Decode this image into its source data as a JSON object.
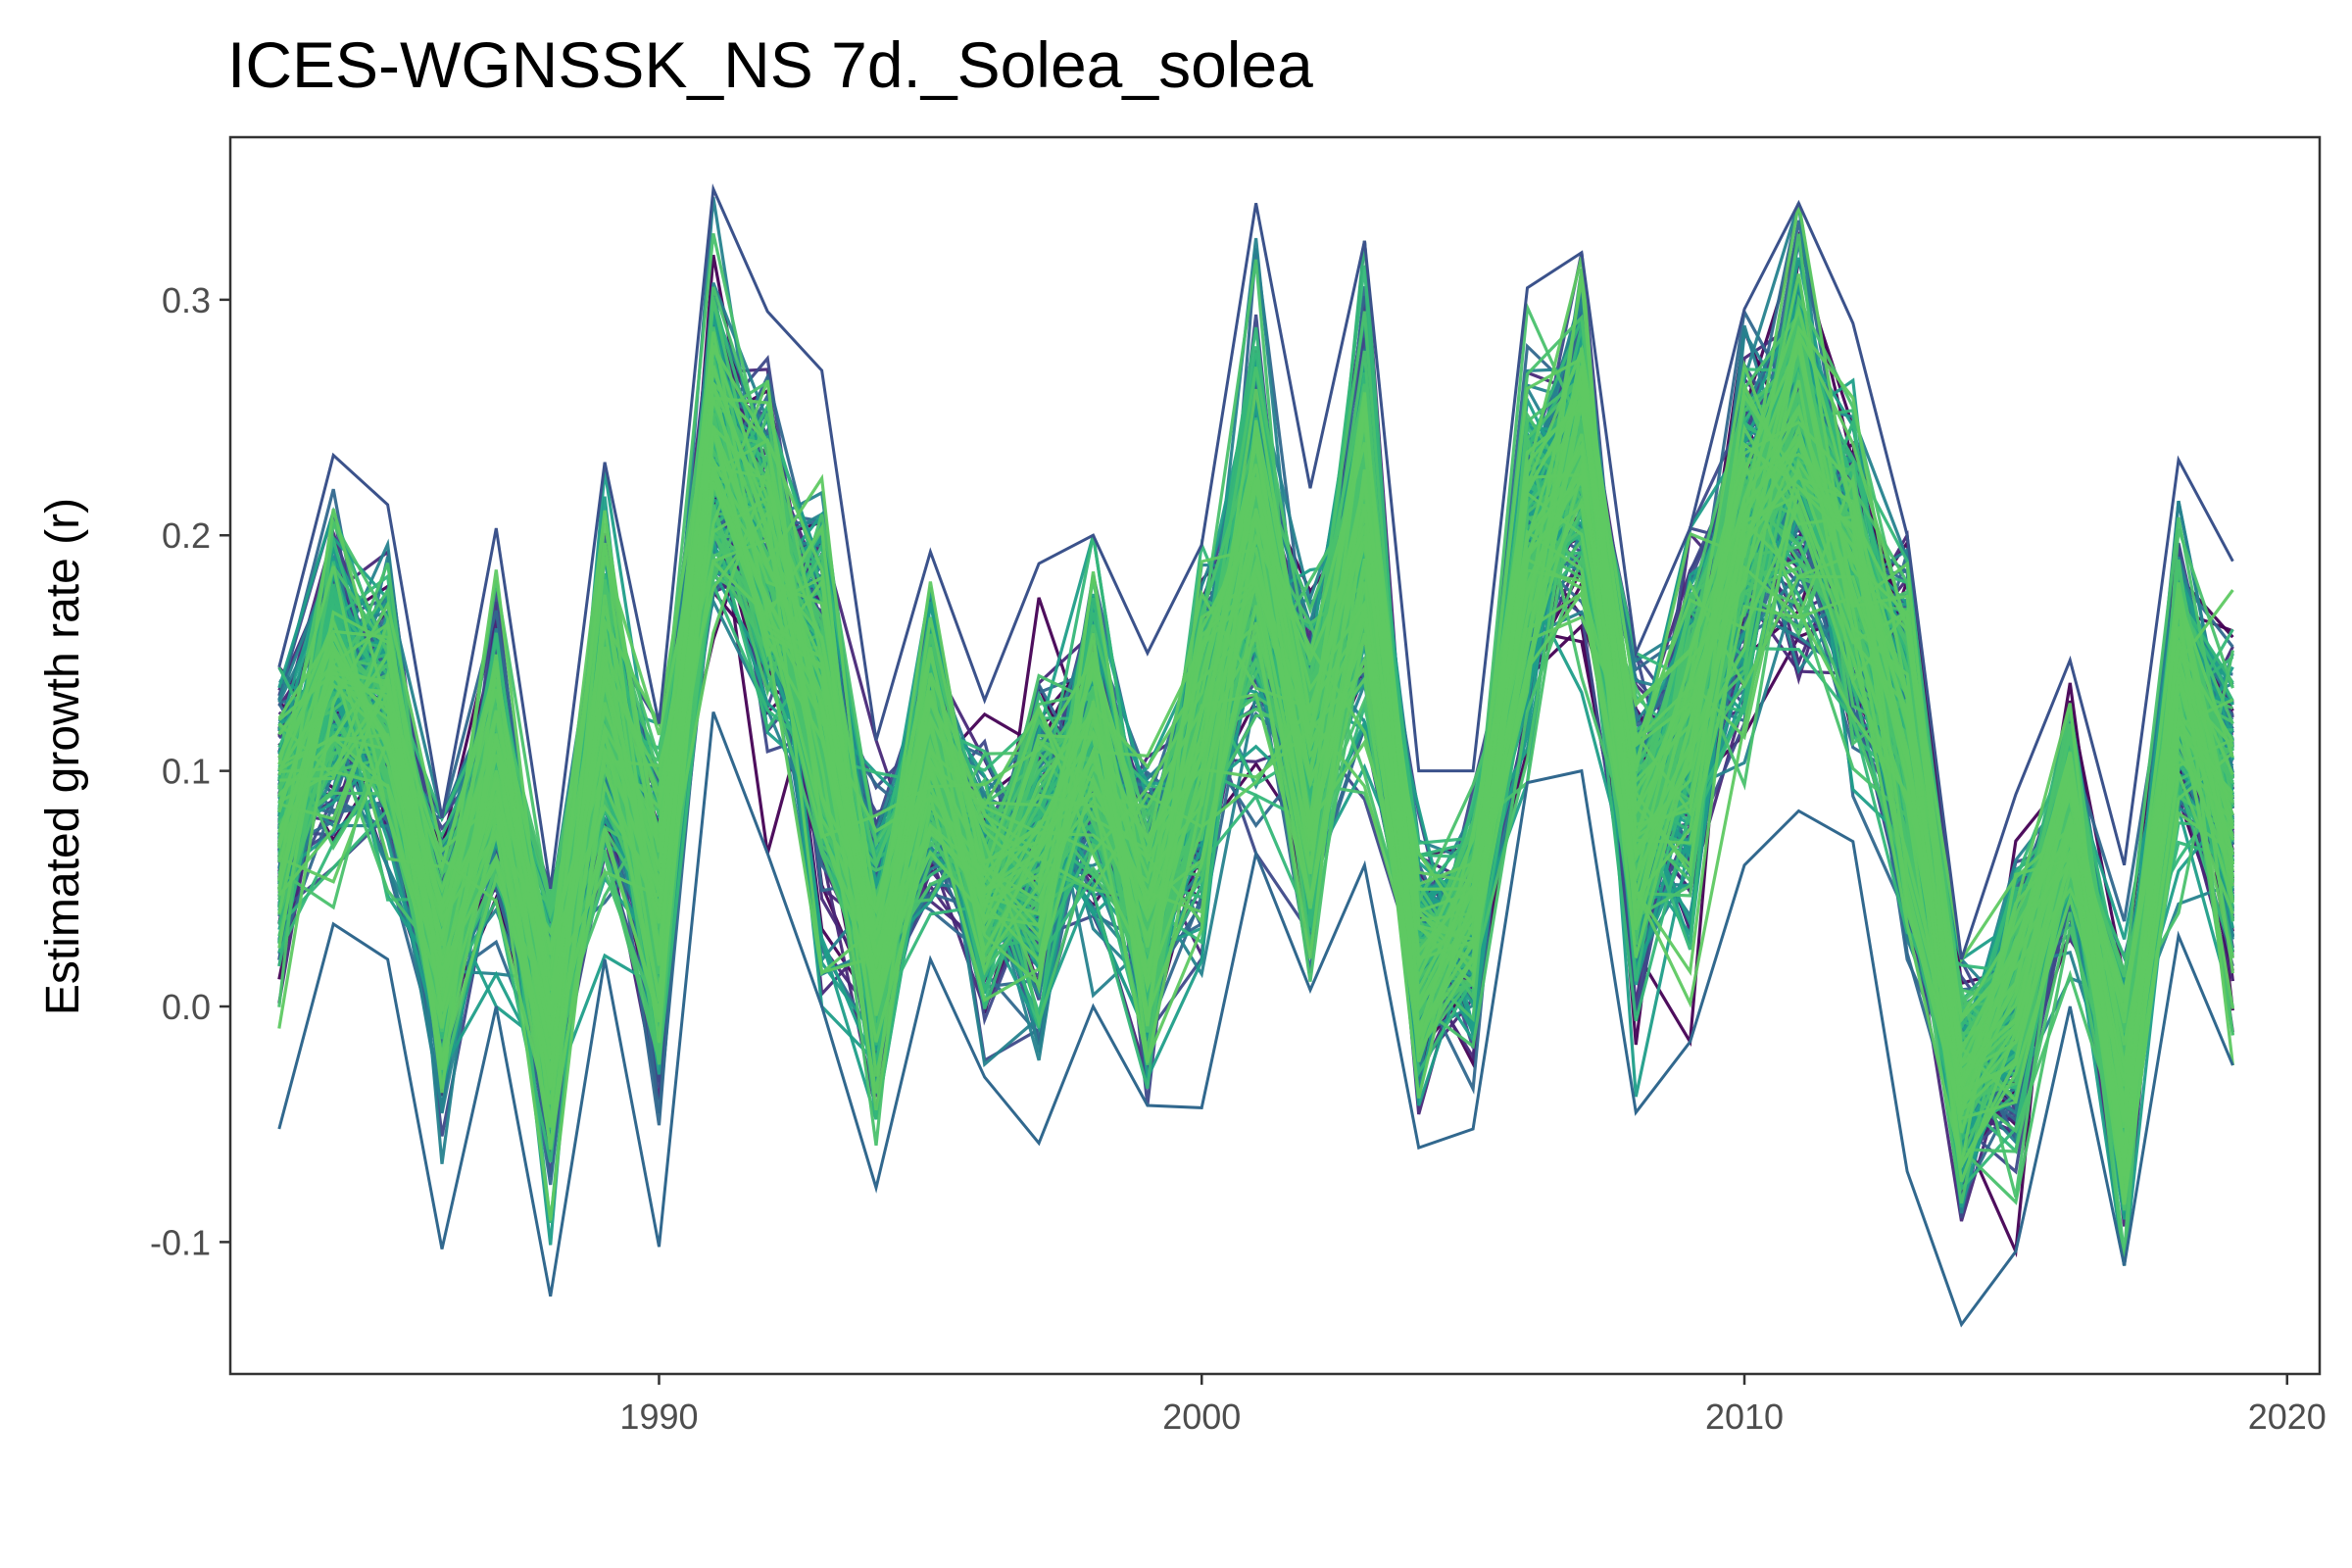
{
  "chart_data": {
    "type": "line",
    "title": "ICES-WGNSSK_NS 7d._Solea_solea",
    "xlabel": "",
    "ylabel": "Estimated growth rate (r)",
    "xlim": [
      1982.1,
      2020.6
    ],
    "ylim": [
      -0.156,
      0.369
    ],
    "x_ticks": [
      1990,
      2000,
      2010,
      2020
    ],
    "x_tick_labels": [
      "1990",
      "2000",
      "2010",
      "2020"
    ],
    "y_ticks": [
      -0.1,
      0.0,
      0.1,
      0.2,
      0.3
    ],
    "y_tick_labels": [
      "-0.1",
      "0.0",
      "0.1",
      "0.2",
      "0.3"
    ],
    "grid": false,
    "legend": "none",
    "ensemble_size": 300,
    "palette": [
      "#440154",
      "#482878",
      "#3e4989",
      "#31688e",
      "#26828e",
      "#1f9e89",
      "#35b779",
      "#4ac16d",
      "#5ec962"
    ],
    "years": [
      1983,
      1984,
      1985,
      1986,
      1987,
      1988,
      1989,
      1990,
      1991,
      1992,
      1993,
      1994,
      1995,
      1996,
      1997,
      1998,
      1999,
      2000,
      2001,
      2002,
      2003,
      2004,
      2005,
      2006,
      2007,
      2008,
      2009,
      2010,
      2011,
      2012,
      2013,
      2014,
      2015,
      2016,
      2017,
      2018,
      2019
    ],
    "mean": [
      0.075,
      0.14,
      0.12,
      0.02,
      0.1,
      -0.01,
      0.13,
      0.04,
      0.24,
      0.19,
      0.13,
      0.02,
      0.11,
      0.05,
      0.06,
      0.11,
      0.04,
      0.11,
      0.2,
      0.1,
      0.21,
      0.02,
      0.04,
      0.19,
      0.24,
      0.07,
      0.12,
      0.2,
      0.24,
      0.18,
      0.11,
      -0.04,
      0.0,
      0.08,
      -0.04,
      0.14,
      0.08
    ],
    "upper": [
      0.144,
      0.234,
      0.213,
      0.08,
      0.203,
      0.05,
      0.231,
      0.12,
      0.347,
      0.295,
      0.27,
      0.113,
      0.193,
      0.13,
      0.188,
      0.2,
      0.15,
      0.196,
      0.341,
      0.22,
      0.325,
      0.1,
      0.1,
      0.305,
      0.32,
      0.15,
      0.203,
      0.296,
      0.341,
      0.29,
      0.2,
      0.02,
      0.09,
      0.147,
      0.06,
      0.232,
      0.189
    ],
    "lower": [
      -0.052,
      0.035,
      0.02,
      -0.103,
      0.0,
      -0.123,
      0.02,
      -0.102,
      0.125,
      0.065,
      0.0,
      -0.077,
      0.02,
      -0.03,
      -0.058,
      0.0,
      -0.042,
      -0.043,
      0.065,
      0.007,
      0.06,
      -0.06,
      -0.052,
      0.095,
      0.1,
      -0.045,
      -0.015,
      0.06,
      0.083,
      0.07,
      -0.07,
      -0.135,
      -0.104,
      0.0,
      -0.11,
      0.03,
      -0.025
    ]
  }
}
